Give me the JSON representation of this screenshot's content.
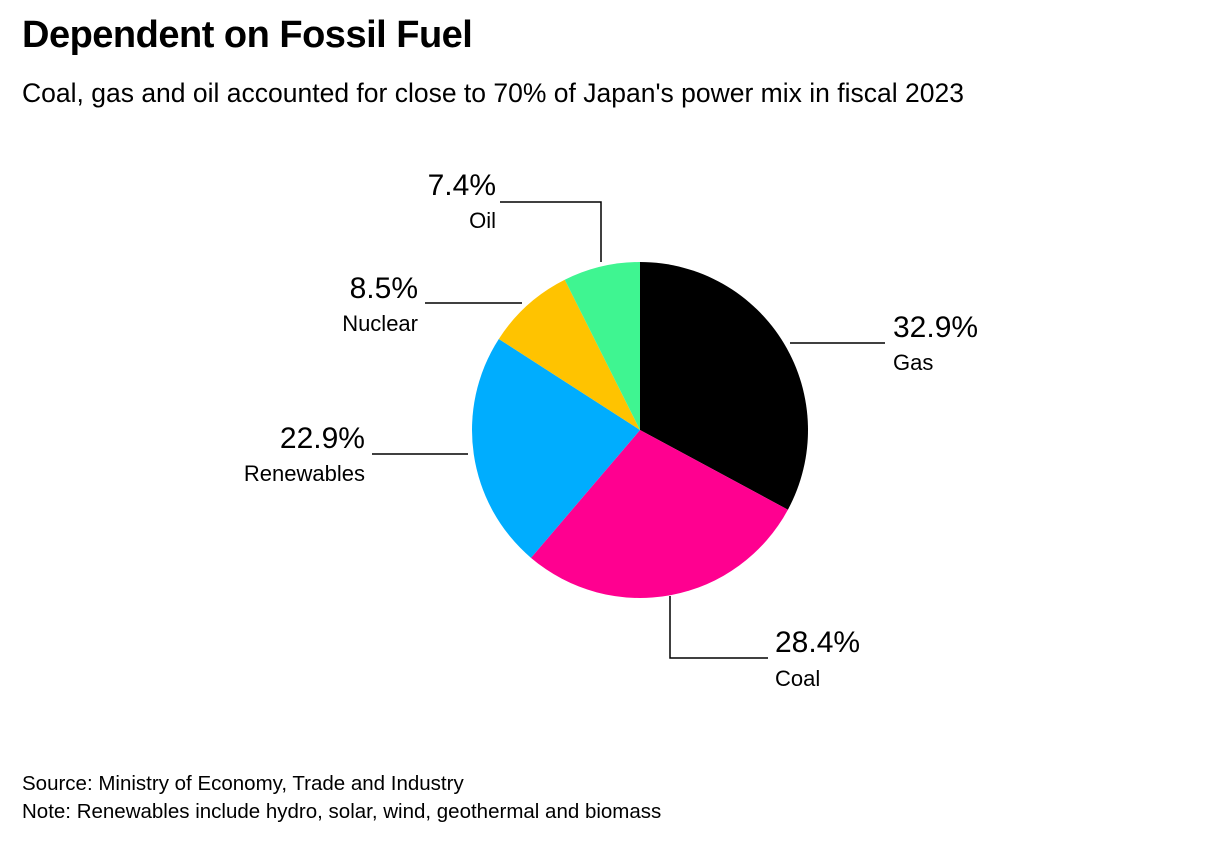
{
  "chart_data": {
    "type": "pie",
    "title": "Dependent on Fossil Fuel",
    "subtitle": "Coal, gas and oil accounted for close to 70% of Japan's power mix in fiscal 2023",
    "slices": [
      {
        "name": "Gas",
        "value": 32.9,
        "label": "32.9%",
        "color": "#000000"
      },
      {
        "name": "Coal",
        "value": 28.4,
        "label": "28.4%",
        "color": "#ff0090"
      },
      {
        "name": "Renewables",
        "value": 22.9,
        "label": "22.9%",
        "color": "#00adfe"
      },
      {
        "name": "Nuclear",
        "value": 8.5,
        "label": "8.5%",
        "color": "#ffc300"
      },
      {
        "name": "Oil",
        "value": 7.4,
        "label": "7.4%",
        "color": "#3ff591"
      }
    ],
    "source": "Source: Ministry of Economy, Trade and Industry",
    "note": "Note: Renewables include hydro, solar, wind, geothermal and biomass"
  }
}
